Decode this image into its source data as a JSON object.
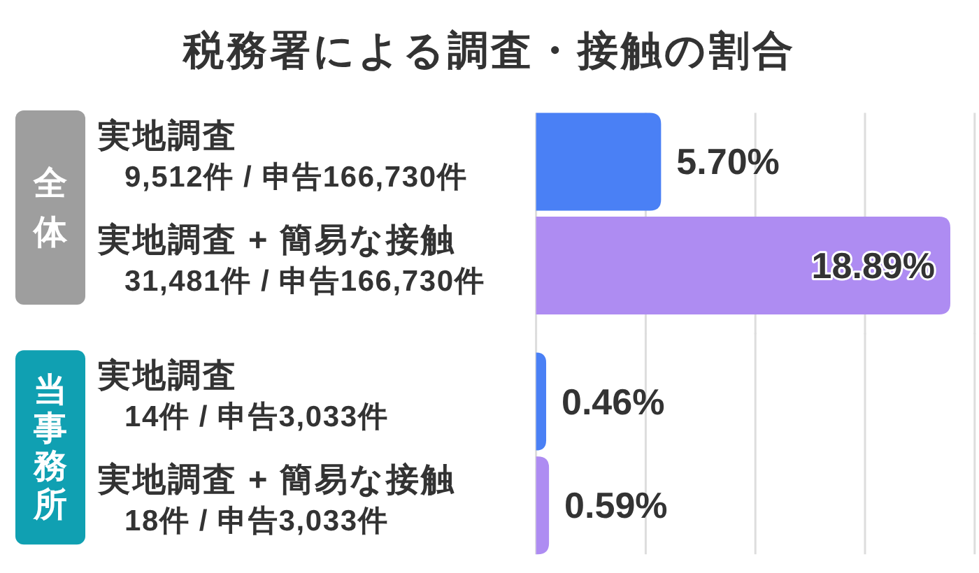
{
  "chart_data": [
    {
      "type": "bar",
      "orientation": "horizontal",
      "title": "税務署による調査・接触の割合",
      "ylabel": "全体",
      "categories": [
        "実地調査\n9,512件 / 申告166,730件",
        "実地調査 + 簡易な接触\n31,481件 / 申告166,730件"
      ],
      "values": [
        5.7,
        18.89
      ],
      "colors": [
        "#4a80f5",
        "#ae8cf2"
      ],
      "value_labels": [
        "5.70%",
        "18.89%"
      ],
      "xlim": [
        0,
        20
      ],
      "xticks": [
        {
          "value": 0,
          "label": null
        },
        {
          "value": 5,
          "label": null
        },
        {
          "value": 10,
          "label": null
        },
        {
          "value": 15,
          "label": null
        },
        {
          "value": 20,
          "label": null
        }
      ],
      "grid": "x",
      "tick_labels": "y"
    },
    {
      "type": "bar",
      "orientation": "horizontal",
      "ylabel": "当事務所",
      "categories": [
        "実地調査\n14件 / 申告3,033件",
        "実地調査 + 簡易な接触\n18件 / 申告3,033件"
      ],
      "values": [
        0.46,
        0.59
      ],
      "colors": [
        "#4a80f5",
        "#ae8cf2"
      ],
      "value_labels": [
        "0.46%",
        "0.59%"
      ],
      "xlim": [
        0,
        20
      ],
      "xticks": [
        {
          "value": 0,
          "label": null
        },
        {
          "value": 5,
          "label": null
        },
        {
          "value": 10,
          "label": null
        },
        {
          "value": 15,
          "label": null
        },
        {
          "value": 20,
          "label": null
        }
      ],
      "grid": "x",
      "tick_labels": "y"
    }
  ]
}
